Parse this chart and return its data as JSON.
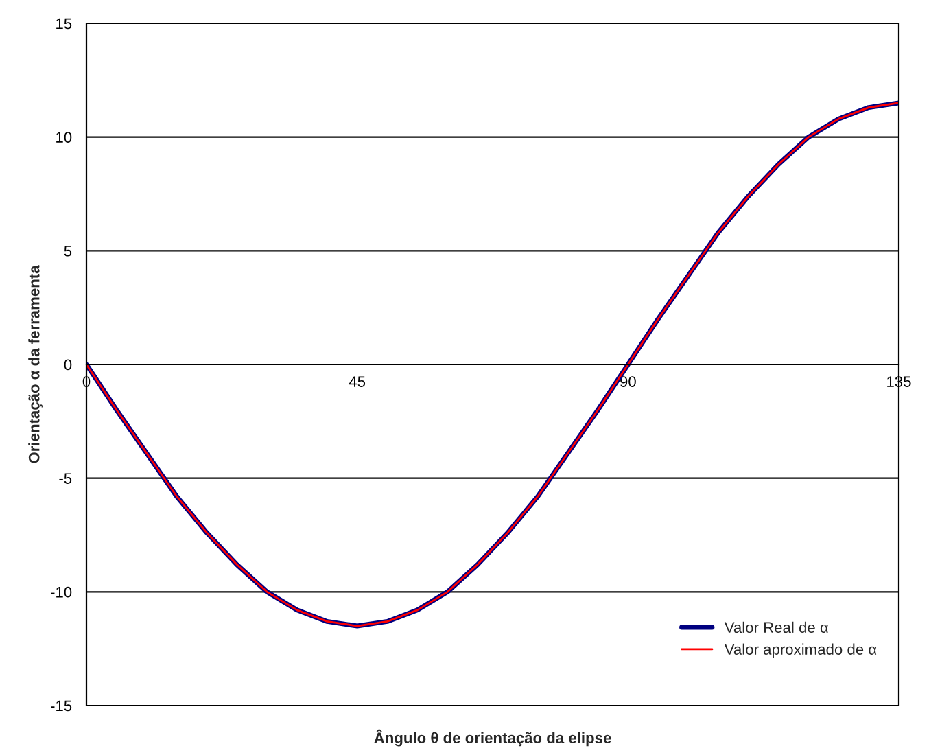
{
  "chart_data": {
    "type": "line",
    "xlabel": "Ângulo θ de orientação da elipse",
    "ylabel": "Orientação α da ferramenta",
    "x": [
      0,
      5,
      10,
      15,
      20,
      25,
      30,
      35,
      40,
      45,
      50,
      55,
      60,
      65,
      70,
      75,
      80,
      85,
      90,
      95,
      100,
      105,
      110,
      115,
      120,
      125,
      130,
      135
    ],
    "series": [
      {
        "name": "Valor Real de α",
        "color": "#000080",
        "values": [
          0,
          -2.0,
          -3.9,
          -5.8,
          -7.4,
          -8.8,
          -10.0,
          -10.8,
          -11.3,
          -11.5,
          -11.3,
          -10.8,
          -10.0,
          -8.8,
          -7.4,
          -5.8,
          -3.9,
          -2.0,
          0,
          2.0,
          3.9,
          5.8,
          7.4,
          8.8,
          10.0,
          10.8,
          11.3,
          11.5
        ]
      },
      {
        "name": "Valor aproximado de α",
        "color": "#ff0000",
        "values": [
          0,
          -2.0,
          -3.9,
          -5.8,
          -7.4,
          -8.8,
          -10.0,
          -10.8,
          -11.3,
          -11.5,
          -11.3,
          -10.8,
          -10.0,
          -8.8,
          -7.4,
          -5.8,
          -3.9,
          -2.0,
          0,
          2.0,
          3.9,
          5.8,
          7.4,
          8.8,
          10.0,
          10.8,
          11.3,
          11.5
        ]
      }
    ],
    "xlim": [
      0,
      135
    ],
    "xticks": [
      0,
      45,
      90,
      135
    ],
    "ylim": [
      -15,
      15
    ],
    "yticks": [
      -15,
      -10,
      -5,
      0,
      5,
      10,
      15
    ],
    "grid": "y",
    "legend": "bottom right",
    "marker": "none",
    "line_style": "solid"
  }
}
